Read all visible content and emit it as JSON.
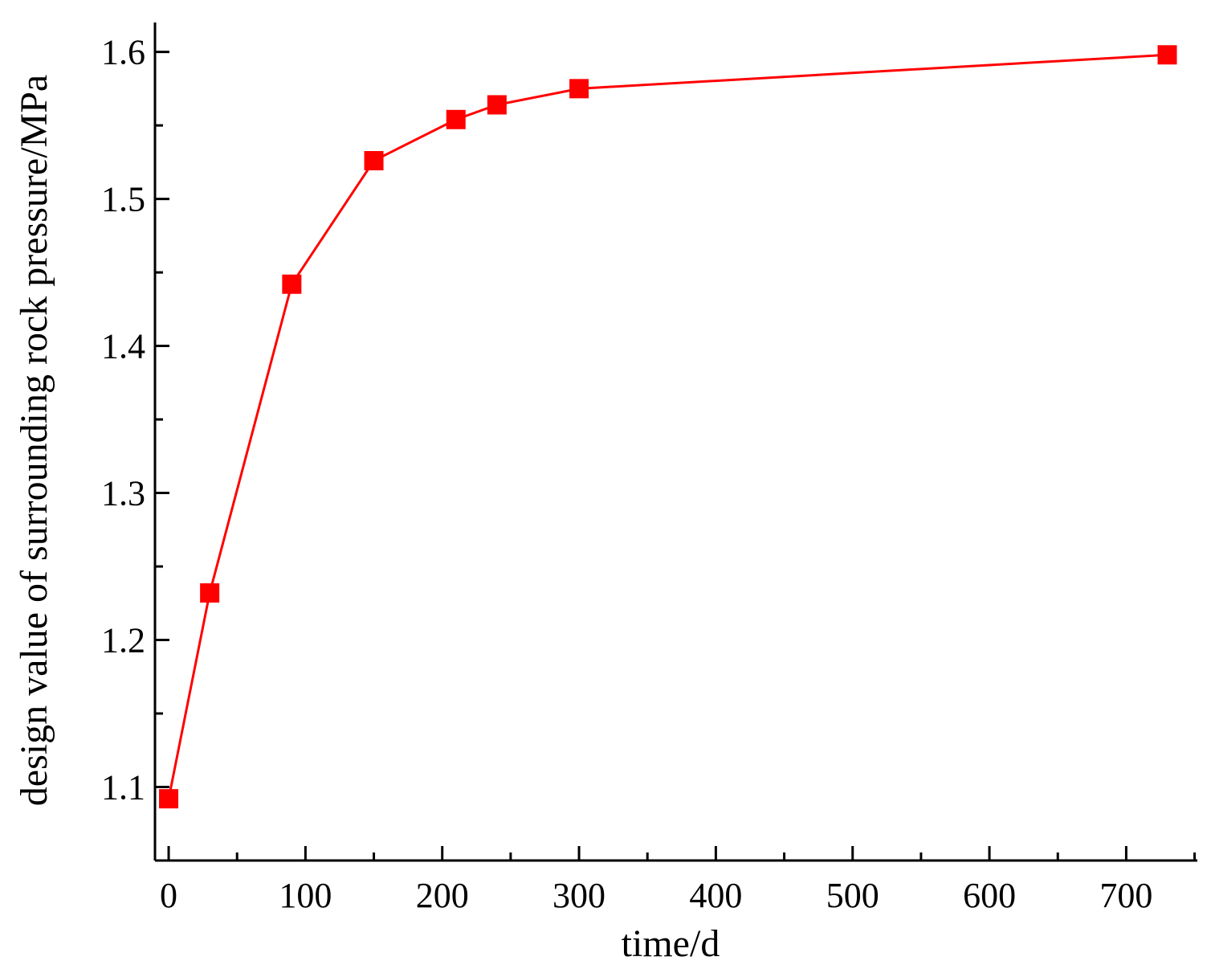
{
  "chart_data": {
    "type": "line",
    "xlabel": "time/d",
    "ylabel": "design value of surrounding rock pressure/MPa",
    "xlim": [
      -10,
      752
    ],
    "ylim": [
      1.05,
      1.62
    ],
    "xticks": [
      0,
      100,
      200,
      300,
      400,
      500,
      600,
      700
    ],
    "xtick_labels": [
      "0",
      "100",
      "200",
      "300",
      "400",
      "500",
      "600",
      "700"
    ],
    "xminor_ticks": [
      50,
      150,
      250,
      350,
      450,
      550,
      650,
      750
    ],
    "yticks": [
      1.1,
      1.2,
      1.3,
      1.4,
      1.5,
      1.6
    ],
    "ytick_labels": [
      "1.1",
      "1.2",
      "1.3",
      "1.4",
      "1.5",
      "1.6"
    ],
    "yminor_ticks": [
      1.15,
      1.25,
      1.35,
      1.45,
      1.55
    ],
    "grid": false,
    "series": [
      {
        "x": [
          0,
          30,
          90,
          150,
          210,
          240,
          300,
          730
        ],
        "y": [
          1.092,
          1.232,
          1.442,
          1.526,
          1.554,
          1.564,
          1.575,
          1.598
        ],
        "color": "#ff0000",
        "marker": "square"
      }
    ]
  }
}
